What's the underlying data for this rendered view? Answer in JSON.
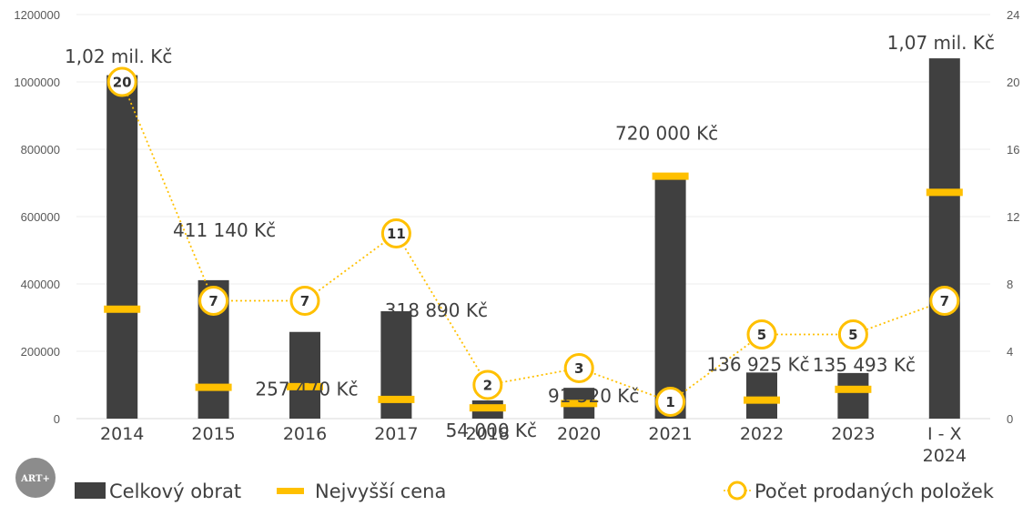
{
  "chart_data": {
    "type": "bar",
    "categories": [
      "2014",
      "2015",
      "2016",
      "2017",
      "2018",
      "2020",
      "2021",
      "2022",
      "2023",
      "I - X\n2024"
    ],
    "series": [
      {
        "name": "Celkový obrat",
        "kind": "bar",
        "axis": "left",
        "color": "#404040",
        "values": [
          1020000,
          411140,
          257470,
          318890,
          54000,
          91520,
          720000,
          136925,
          135493,
          1070000
        ],
        "data_labels": [
          "1,02 mil. Kč",
          "411 140 Kč",
          "257 470 Kč",
          "318 890 Kč",
          "54 000 Kč",
          "91 520 Kč",
          "720 000 Kč",
          "136 925 Kč",
          "135 493 Kč",
          "1,07 mil. Kč"
        ]
      },
      {
        "name": "Nejvyšší cena",
        "kind": "dash-marker",
        "axis": "left",
        "color": "#FFC000",
        "values": [
          325000,
          93000,
          95000,
          57000,
          32000,
          45000,
          720000,
          55000,
          87000,
          672000
        ]
      },
      {
        "name": "Počet prodaných položek",
        "kind": "line",
        "axis": "right",
        "color": "#FFC000",
        "values": [
          20,
          7,
          7,
          11,
          2,
          3,
          1,
          5,
          5,
          7
        ]
      }
    ],
    "y_left": {
      "min": 0,
      "max": 1200000,
      "ticks": [
        "0",
        "200000",
        "400000",
        "600000",
        "800000",
        "1000000",
        "1200000"
      ]
    },
    "y_right": {
      "min": 0,
      "max": 24,
      "ticks": [
        "0",
        "4",
        "8",
        "12",
        "16",
        "20",
        "24"
      ]
    },
    "grid": true,
    "legend_placement": "bottom",
    "legend": {
      "bar": "Celkový obrat",
      "dash": "Nejvyšší cena",
      "line": "Počet prodaných položek"
    },
    "logo_text": "ART+"
  }
}
